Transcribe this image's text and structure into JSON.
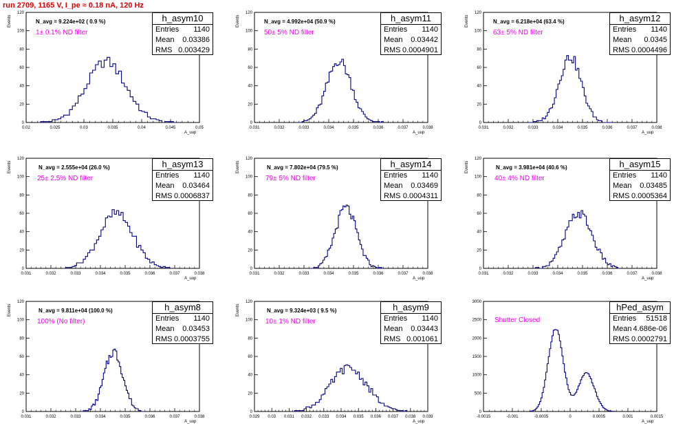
{
  "title": "run 2709,  1165 V, I_pe ≈ 0.18 nA, 120 Hz",
  "chart_data": [
    {
      "type": "bar",
      "name": "h_asym10",
      "navg": "N_avg = 9.224e+02 ( 0.9 %)",
      "filter": "1± 0.1% ND filter",
      "entries": "1140",
      "mean": "0.03386",
      "rms": "0.003429",
      "xlabel": "A_uup",
      "ylabel": "Events",
      "xlim": [
        0.02,
        0.05
      ],
      "ylim": [
        0,
        120
      ],
      "xticks": [
        0.02,
        0.025,
        0.03,
        0.035,
        0.04,
        0.045,
        0.05
      ],
      "yticks": [
        0,
        20,
        40,
        60,
        80,
        100,
        120
      ],
      "dist": {
        "mu": 0.03386,
        "sigma": 0.003429,
        "n": 1140,
        "lo": 0.022,
        "hi": 0.046,
        "bins": 48
      }
    },
    {
      "type": "bar",
      "name": "h_asym11",
      "navg": "N_avg = 4.992e+04 (50.9 %)",
      "filter": "50± 5% ND filter",
      "entries": "1140",
      "mean": "0.03442",
      "rms": "0.0004901",
      "xlabel": "A_uup",
      "ylabel": "Events",
      "xlim": [
        0.031,
        0.038
      ],
      "ylim": [
        0,
        120
      ],
      "xticks": [
        0.031,
        0.032,
        0.033,
        0.034,
        0.035,
        0.036,
        0.037,
        0.038
      ],
      "yticks": [
        0,
        20,
        40,
        60,
        80,
        100,
        120
      ],
      "dist": {
        "mu": 0.03442,
        "sigma": 0.0004901,
        "n": 1140,
        "lo": 0.0327,
        "hi": 0.0362,
        "bins": 48
      }
    },
    {
      "type": "bar",
      "name": "h_asym12",
      "navg": "N_avg = 6.218e+04 (63.4 %)",
      "filter": "63± 5% ND filter",
      "entries": "1140",
      "mean": "0.0345",
      "rms": "0.0004496",
      "xlabel": "A_uup",
      "ylabel": "Events",
      "xlim": [
        0.031,
        0.038
      ],
      "ylim": [
        0,
        120
      ],
      "xticks": [
        0.031,
        0.032,
        0.033,
        0.034,
        0.035,
        0.036,
        0.037,
        0.038
      ],
      "yticks": [
        0,
        20,
        40,
        60,
        80,
        100,
        120
      ],
      "dist": {
        "mu": 0.0345,
        "sigma": 0.0004496,
        "n": 1140,
        "lo": 0.0328,
        "hi": 0.0362,
        "bins": 48
      }
    },
    {
      "type": "bar",
      "name": "h_asym13",
      "navg": "N_avg = 2.555e+04 (26.0 %)",
      "filter": "25± 2.5% ND filter",
      "entries": "1140",
      "mean": "0.03464",
      "rms": "0.0006837",
      "xlabel": "A_uup",
      "ylabel": "Events",
      "xlim": [
        0.031,
        0.038
      ],
      "ylim": [
        0,
        120
      ],
      "xticks": [
        0.031,
        0.032,
        0.033,
        0.034,
        0.035,
        0.036,
        0.037,
        0.038
      ],
      "yticks": [
        0,
        20,
        40,
        60,
        80,
        100,
        120
      ],
      "dist": {
        "mu": 0.03464,
        "sigma": 0.0006837,
        "n": 1140,
        "lo": 0.0325,
        "hi": 0.0368,
        "bins": 48
      }
    },
    {
      "type": "bar",
      "name": "h_asym14",
      "navg": "N_avg = 7.802e+04 (79.5 %)",
      "filter": "79± 5% ND filter",
      "entries": "1140",
      "mean": "0.03469",
      "rms": "0.0004311",
      "xlabel": "A_uup",
      "ylabel": "Events",
      "xlim": [
        0.031,
        0.038
      ],
      "ylim": [
        0,
        120
      ],
      "xticks": [
        0.031,
        0.032,
        0.033,
        0.034,
        0.035,
        0.036,
        0.037,
        0.038
      ],
      "yticks": [
        0,
        20,
        40,
        60,
        80,
        100,
        120
      ],
      "dist": {
        "mu": 0.03469,
        "sigma": 0.0004311,
        "n": 1140,
        "lo": 0.0332,
        "hi": 0.0362,
        "bins": 48
      }
    },
    {
      "type": "bar",
      "name": "h_asym15",
      "navg": "N_avg = 3.981e+04 (40.6 %)",
      "filter": "40± 4% ND filter",
      "entries": "1140",
      "mean": "0.03485",
      "rms": "0.0005364",
      "xlabel": "A_uup",
      "ylabel": "Events",
      "xlim": [
        0.031,
        0.038
      ],
      "ylim": [
        0,
        120
      ],
      "xticks": [
        0.031,
        0.032,
        0.033,
        0.034,
        0.035,
        0.036,
        0.037,
        0.038
      ],
      "yticks": [
        0,
        20,
        40,
        60,
        80,
        100,
        120
      ],
      "dist": {
        "mu": 0.03485,
        "sigma": 0.0005364,
        "n": 1140,
        "lo": 0.0331,
        "hi": 0.0365,
        "bins": 48
      }
    },
    {
      "type": "bar",
      "name": "h_asym8",
      "navg": "N_avg = 9.811e+04 (100.0 %)",
      "filter": "100% (No filter)",
      "entries": "1140",
      "mean": "0.03453",
      "rms": "0.0003755",
      "xlabel": "A_uup",
      "ylabel": "Events",
      "xlim": [
        0.031,
        0.038
      ],
      "ylim": [
        0,
        120
      ],
      "xticks": [
        0.031,
        0.032,
        0.033,
        0.034,
        0.035,
        0.036,
        0.037,
        0.038
      ],
      "yticks": [
        0,
        20,
        40,
        60,
        80,
        100,
        120
      ],
      "dist": {
        "mu": 0.03453,
        "sigma": 0.0003755,
        "n": 1140,
        "lo": 0.0332,
        "hi": 0.0358,
        "bins": 48
      }
    },
    {
      "type": "bar",
      "name": "h_asym9",
      "navg": "N_avg = 9.324e+03 ( 9.5 %)",
      "filter": "10± 1% ND filter",
      "entries": "1140",
      "mean": "0.03443",
      "rms": "0.001061",
      "xlabel": "A_uup",
      "ylabel": "Events",
      "xlim": [
        0.029,
        0.039
      ],
      "ylim": [
        0,
        120
      ],
      "xticks": [
        0.029,
        0.03,
        0.031,
        0.032,
        0.033,
        0.034,
        0.035,
        0.036,
        0.037,
        0.038,
        0.039
      ],
      "yticks": [
        0,
        20,
        40,
        60,
        80,
        100,
        120
      ],
      "dist": {
        "mu": 0.03443,
        "sigma": 0.001061,
        "n": 1140,
        "lo": 0.0312,
        "hi": 0.0378,
        "bins": 60
      }
    },
    {
      "type": "bar",
      "name": "hPed_asym",
      "navg": "",
      "filter": "Shutter Closed",
      "entries": "51518",
      "mean": "4.686e-06",
      "rms": "0.0002791",
      "xlabel": "A_uup",
      "ylabel": "",
      "xlim": [
        -0.0015,
        0.0015
      ],
      "ylim": [
        0,
        3000
      ],
      "xticks": [
        -0.0015,
        -0.001,
        -0.0005,
        0,
        0.0005,
        0.001,
        0.0015
      ],
      "yticks": [
        0,
        500,
        1000,
        1500,
        2000,
        2500,
        3000
      ],
      "dist": {
        "mu": 4.686e-06,
        "sigma": 0.0002791,
        "n": 51518,
        "lo": -0.0007,
        "hi": 0.0008,
        "bins": 70,
        "bimodal": true
      }
    }
  ]
}
